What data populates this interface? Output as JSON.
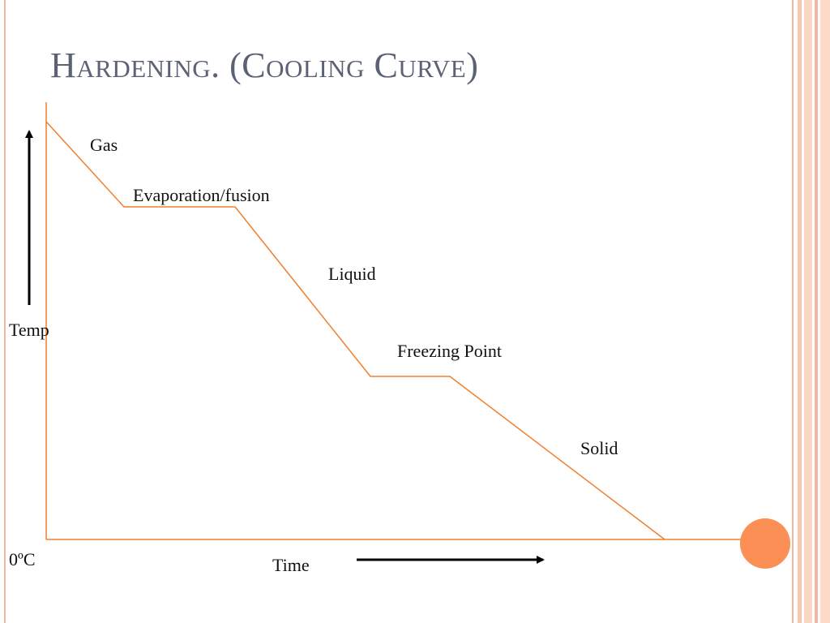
{
  "slide": {
    "title": "Hardening. (Cooling Curve)"
  },
  "diagram": {
    "type": "cooling-curve",
    "line_color": "#f08030",
    "arrow_color": "#000000",
    "accent_dot_color": "#fb8f55",
    "labels": {
      "gas": "Gas",
      "evaporation": "Evaporation/fusion",
      "liquid": "Liquid",
      "freezing": "Freezing Point",
      "solid": "Solid",
      "y_axis": "Temp",
      "x_axis": "Time",
      "zero": "0ºC"
    },
    "segments": [
      "Gas",
      "Evaporation/fusion",
      "Liquid",
      "Freezing Point",
      "Solid"
    ]
  }
}
